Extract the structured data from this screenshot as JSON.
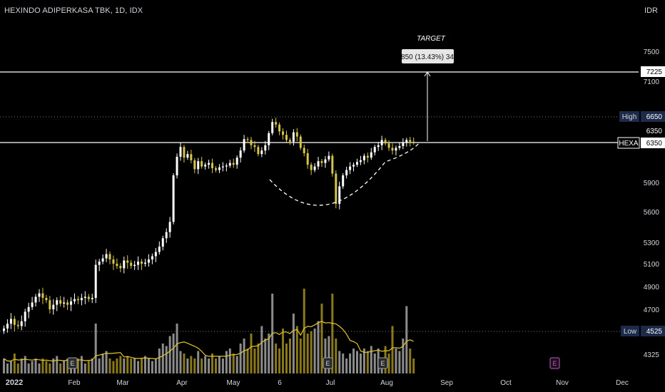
{
  "header": {
    "symbol_title": "HEXINDO ADIPERKASA TBK, 1D, IDX",
    "currency": "IDR"
  },
  "annotations": {
    "target_label": "TARGET",
    "target_box": "850 (13.43%) 34"
  },
  "badges": {
    "high_label": "High",
    "high_value": "6650",
    "low_label": "Low",
    "low_value": "4525",
    "symbol_label": "HEXA",
    "symbol_value": "6350",
    "line_value": "6350",
    "target_value": "7225"
  },
  "colors": {
    "background": "#000000",
    "up_candle": "#ffffff",
    "down_candle": "#d4c54a",
    "volume_up": "#8c8c8c",
    "volume_down": "#8a7a1c",
    "volume_ma": "#e3c72b",
    "guide_line": "#ffffff",
    "badge_bg": "#1e2a4a",
    "earnings_marker": "#9aa0a6",
    "upcoming_earnings": "#c05bc0"
  },
  "chart_data": {
    "type": "candlestick",
    "title": "HEXINDO ADIPERKASA TBK, 1D, IDX",
    "y_axis": {
      "unit": "IDR",
      "ticks": [
        "7500",
        "7100",
        "5900",
        "5600",
        "5300",
        "5100",
        "4900",
        "4700",
        "4325"
      ]
    },
    "x_axis": {
      "ticks": [
        "2022",
        "Feb",
        "Mar",
        "Apr",
        "May",
        "6",
        "Jul",
        "Aug",
        "Sep",
        "Oct",
        "Nov",
        "Dec"
      ]
    },
    "levels": {
      "target": 7225,
      "high": 6650,
      "current": 6350,
      "low": 4525
    },
    "target_move": {
      "points": 850,
      "percent": 13.43,
      "bars": 34
    },
    "pattern": "cup",
    "closes": [
      4540,
      4580,
      4620,
      4570,
      4560,
      4600,
      4680,
      4720,
      4760,
      4810,
      4840,
      4800,
      4780,
      4700,
      4740,
      4780,
      4750,
      4760,
      4740,
      4770,
      4790,
      4780,
      4800,
      4810,
      4790,
      4800,
      5090,
      5120,
      5150,
      5190,
      5140,
      5100,
      5080,
      5060,
      5130,
      5110,
      5080,
      5090,
      5120,
      5100,
      5110,
      5140,
      5170,
      5210,
      5260,
      5340,
      5400,
      5500,
      5980,
      6190,
      6300,
      6180,
      6220,
      6150,
      6050,
      6140,
      6080,
      6100,
      6120,
      6060,
      6040,
      6070,
      6080,
      6090,
      6120,
      6100,
      6180,
      6260,
      6390,
      6380,
      6320,
      6300,
      6220,
      6260,
      6320,
      6460,
      6590,
      6560,
      6480,
      6440,
      6380,
      6360,
      6470,
      6420,
      6290,
      6230,
      6100,
      6040,
      6080,
      6140,
      6120,
      6160,
      6200,
      6000,
      5680,
      5860,
      5980,
      6040,
      6080,
      6100,
      6130,
      6150,
      6200,
      6180,
      6240,
      6300,
      6320,
      6380,
      6340,
      6290,
      6260,
      6290,
      6310,
      6350,
      6380,
      6360,
      6350
    ],
    "volumes": [
      0.3,
      0.2,
      0.25,
      0.4,
      0.2,
      0.3,
      0.35,
      0.2,
      0.25,
      0.3,
      0.2,
      0.3,
      0.25,
      0.2,
      0.3,
      0.35,
      0.2,
      0.25,
      0.3,
      0.2,
      0.25,
      0.3,
      0.35,
      0.2,
      0.25,
      0.3,
      1.0,
      0.3,
      0.4,
      0.45,
      0.3,
      0.25,
      0.3,
      0.35,
      0.3,
      0.35,
      0.3,
      0.3,
      0.25,
      0.3,
      0.35,
      0.3,
      0.25,
      0.3,
      0.5,
      0.6,
      0.55,
      0.75,
      0.8,
      1.0,
      0.45,
      0.4,
      0.3,
      0.35,
      0.3,
      0.45,
      0.3,
      0.35,
      0.3,
      0.4,
      0.3,
      0.35,
      0.3,
      0.45,
      0.5,
      0.4,
      0.35,
      0.6,
      0.7,
      0.5,
      0.8,
      0.5,
      0.6,
      0.95,
      0.7,
      0.8,
      1.6,
      0.6,
      0.5,
      0.9,
      0.6,
      0.7,
      1.2,
      0.95,
      0.7,
      1.7,
      0.8,
      0.85,
      0.9,
      1.05,
      1.4,
      0.7,
      0.75,
      1.6,
      0.7,
      0.45,
      0.4,
      0.3,
      0.4,
      0.5,
      0.45,
      0.4,
      0.5,
      0.45,
      0.55,
      0.4,
      0.5,
      0.3,
      0.55,
      0.4,
      0.95,
      0.5,
      0.45,
      0.7,
      1.35,
      0.5,
      0.3
    ]
  }
}
